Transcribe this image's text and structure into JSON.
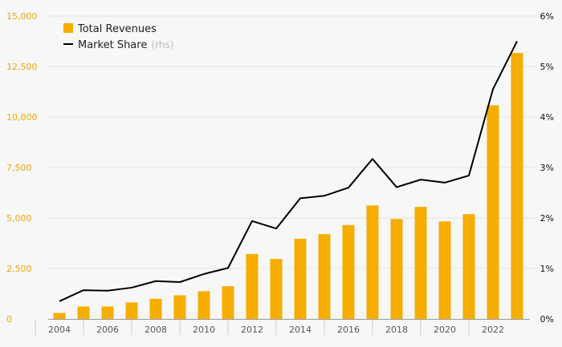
{
  "chart_data": {
    "type": "bar",
    "x": [
      2004,
      2005,
      2006,
      2007,
      2008,
      2009,
      2010,
      2011,
      2012,
      2013,
      2014,
      2015,
      2016,
      2017,
      2018,
      2019,
      2020,
      2021,
      2022,
      2023
    ],
    "x_tick_labels": [
      "2004",
      "2006",
      "2008",
      "2010",
      "2012",
      "2014",
      "2016",
      "2018",
      "2020",
      "2022"
    ],
    "left_axis": {
      "ylim": [
        0,
        15000
      ],
      "ticks": [
        0,
        2500,
        5000,
        7500,
        10000,
        12500,
        15000
      ],
      "tick_labels": [
        "0",
        "2,500",
        "5,000",
        "7,500",
        "10,000",
        "12,500",
        "15,000"
      ]
    },
    "right_axis": {
      "ylim": [
        0,
        6
      ],
      "ticks": [
        0,
        1,
        2,
        3,
        4,
        5,
        6
      ],
      "tick_labels": [
        "0%",
        "1%",
        "2%",
        "3%",
        "4%",
        "5%",
        "6%"
      ]
    },
    "series": [
      {
        "name": "Total Revenues",
        "type": "bar",
        "axis": "left",
        "color": "#f5ad00",
        "values": [
          300,
          620,
          620,
          820,
          1000,
          1170,
          1370,
          1620,
          3220,
          2970,
          3970,
          4200,
          4650,
          5620,
          4950,
          5550,
          4830,
          5190,
          10580,
          13170
        ]
      },
      {
        "name": "Market Share",
        "type": "line",
        "axis": "right",
        "color": "#000000",
        "values": [
          0.35,
          0.57,
          0.56,
          0.62,
          0.75,
          0.73,
          0.89,
          1.01,
          1.94,
          1.79,
          2.39,
          2.44,
          2.6,
          3.17,
          2.61,
          2.76,
          2.7,
          2.84,
          4.55,
          5.5
        ]
      }
    ],
    "legend": {
      "placement": "top-left",
      "items": [
        {
          "label": "Total Revenues",
          "suffix": ""
        },
        {
          "label": "Market Share",
          "suffix": "(rhs)"
        }
      ]
    },
    "grid": true
  }
}
